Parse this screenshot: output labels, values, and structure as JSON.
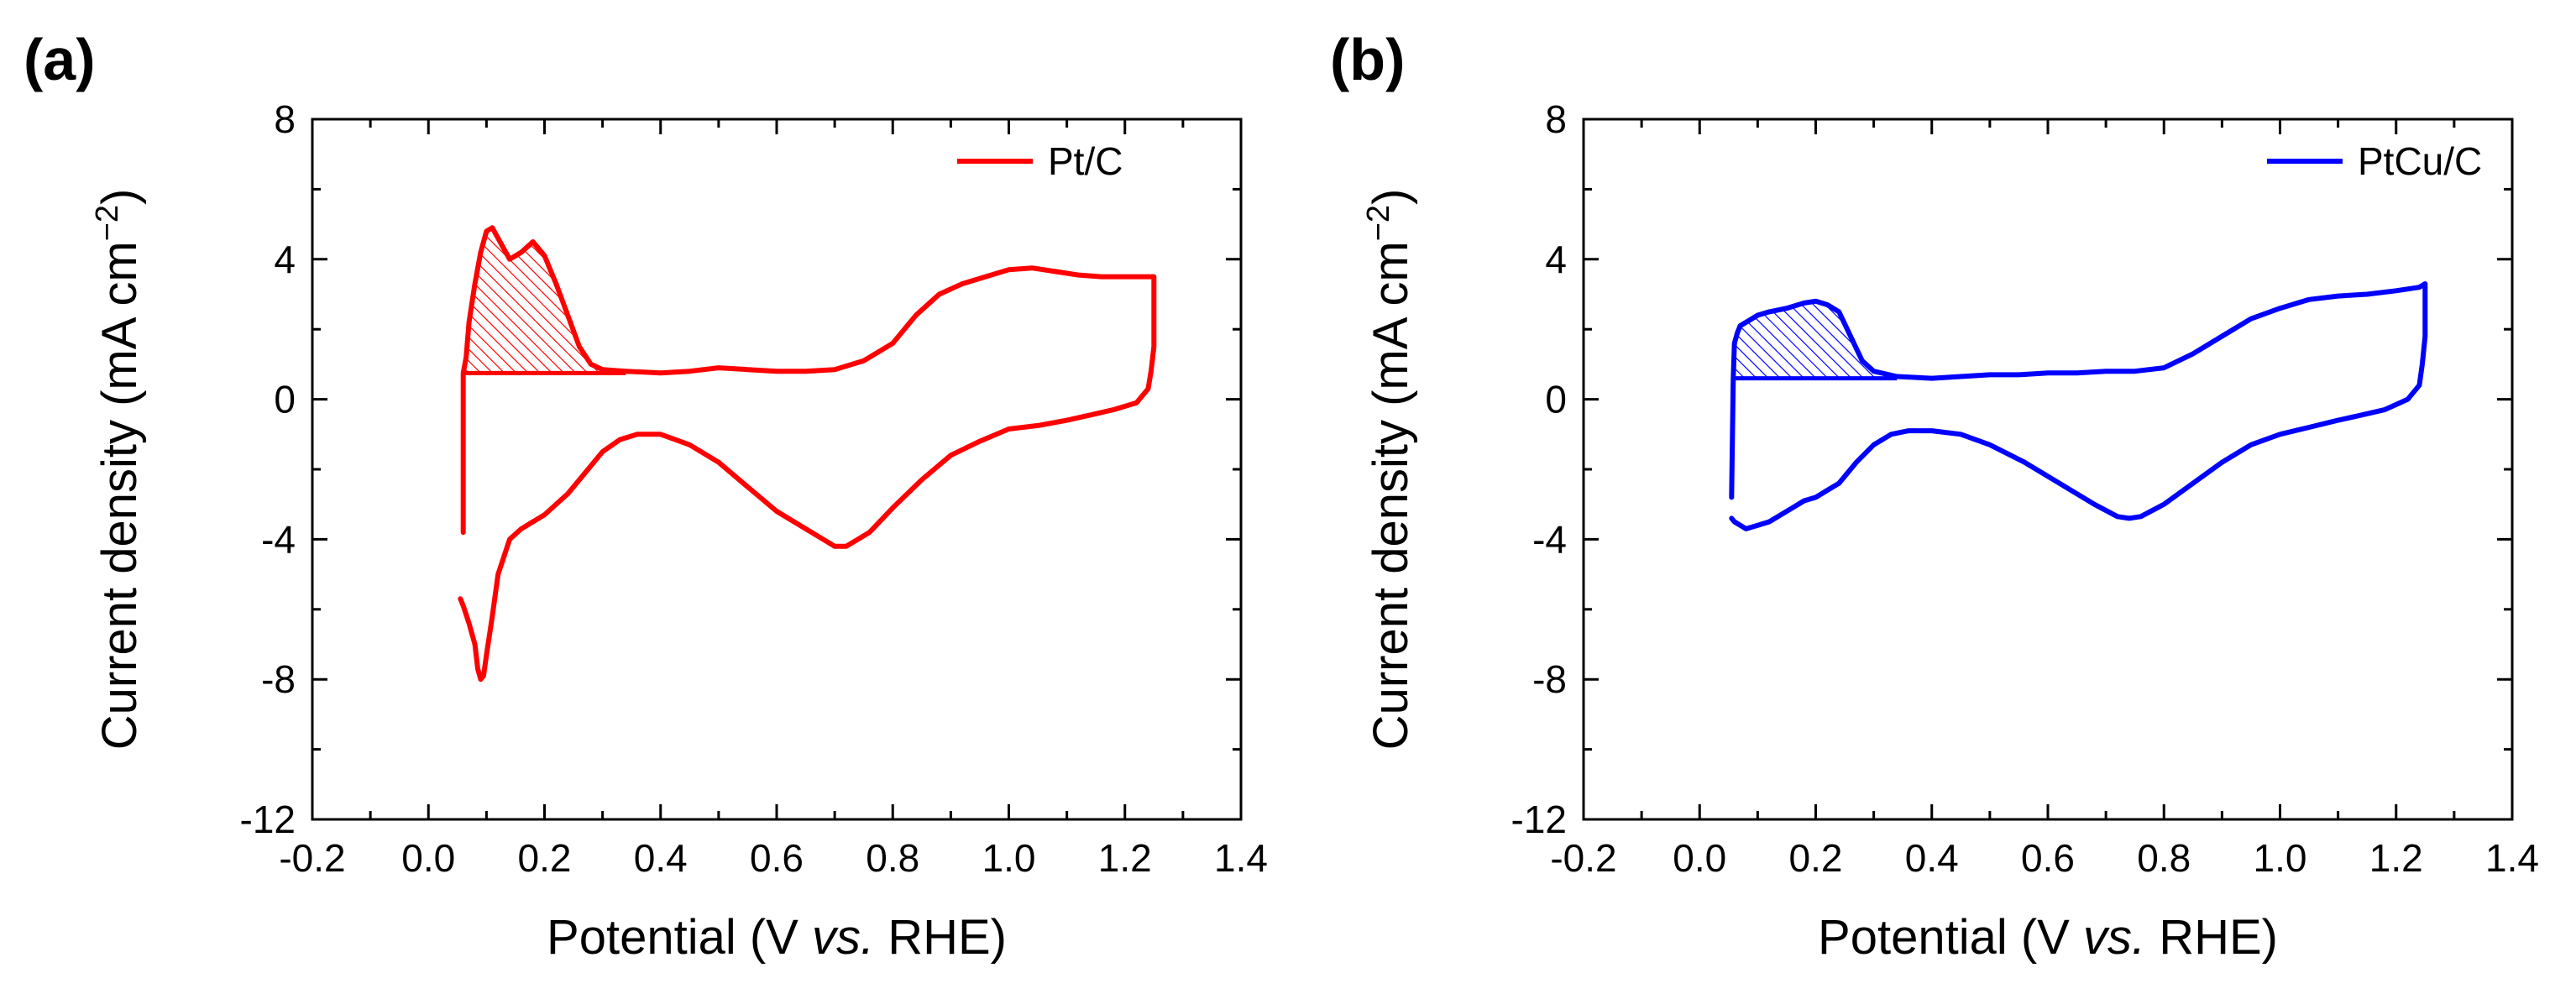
{
  "chart_data": [
    {
      "type": "line",
      "panel_label": "(a)",
      "xlabel": {
        "pre": "Potential (V ",
        "ital": "vs.",
        "post": " RHE)"
      },
      "ylabel": {
        "main": "Current density (mA cm",
        "sup": "−2",
        "close": ")"
      },
      "xlim": [
        -0.2,
        1.4
      ],
      "ylim": [
        -12,
        8
      ],
      "xticks": [
        -0.2,
        0.0,
        0.2,
        0.4,
        0.6,
        0.8,
        1.0,
        1.2,
        1.4
      ],
      "xtick_labels": [
        "-0.2",
        "0.0",
        "0.2",
        "0.4",
        "0.6",
        "0.8",
        "1.0",
        "1.2",
        "1.4"
      ],
      "yticks": [
        -12,
        -8,
        -4,
        0,
        4,
        8
      ],
      "ytick_labels": [
        "-12",
        "-8",
        "-4",
        "0",
        "4",
        "8"
      ],
      "legend_position": "top-right",
      "hatched_region": {
        "baseline": 0.75,
        "x_start": 0.06,
        "x_end": 0.34
      },
      "series": [
        {
          "name": "Pt/C",
          "color": "#ff0000",
          "x": [
            0.06,
            0.06,
            0.065,
            0.07,
            0.08,
            0.09,
            0.1,
            0.11,
            0.12,
            0.14,
            0.16,
            0.18,
            0.2,
            0.22,
            0.24,
            0.26,
            0.28,
            0.3,
            0.34,
            0.4,
            0.45,
            0.5,
            0.55,
            0.6,
            0.65,
            0.7,
            0.75,
            0.8,
            0.84,
            0.88,
            0.92,
            0.96,
            1.0,
            1.04,
            1.08,
            1.12,
            1.16,
            1.2,
            1.24,
            1.25,
            1.25,
            1.245,
            1.24,
            1.22,
            1.18,
            1.14,
            1.1,
            1.05,
            1.0,
            0.95,
            0.9,
            0.85,
            0.8,
            0.76,
            0.72,
            0.7,
            0.66,
            0.6,
            0.55,
            0.5,
            0.45,
            0.4,
            0.36,
            0.33,
            0.3,
            0.27,
            0.24,
            0.22,
            0.2,
            0.18,
            0.16,
            0.14,
            0.12,
            0.11,
            0.1,
            0.095,
            0.09,
            0.085,
            0.08,
            0.07,
            0.06,
            0.055
          ],
          "y": [
            -3.8,
            0.75,
            1.2,
            2.2,
            3.3,
            4.2,
            4.8,
            4.9,
            4.6,
            4.0,
            4.2,
            4.5,
            4.1,
            3.3,
            2.4,
            1.5,
            1.0,
            0.85,
            0.8,
            0.75,
            0.8,
            0.9,
            0.85,
            0.8,
            0.8,
            0.85,
            1.1,
            1.6,
            2.4,
            3.0,
            3.3,
            3.5,
            3.7,
            3.75,
            3.65,
            3.55,
            3.5,
            3.5,
            3.5,
            3.5,
            1.5,
            0.8,
            0.3,
            -0.1,
            -0.3,
            -0.45,
            -0.6,
            -0.75,
            -0.85,
            -1.2,
            -1.6,
            -2.3,
            -3.1,
            -3.8,
            -4.2,
            -4.2,
            -3.8,
            -3.2,
            -2.5,
            -1.8,
            -1.3,
            -1.0,
            -1.0,
            -1.15,
            -1.5,
            -2.1,
            -2.7,
            -3.0,
            -3.3,
            -3.5,
            -3.7,
            -4.0,
            -5.0,
            -6.2,
            -7.3,
            -7.9,
            -8.0,
            -7.7,
            -7.0,
            -6.4,
            -5.9,
            -5.7
          ]
        }
      ]
    },
    {
      "type": "line",
      "panel_label": "(b)",
      "xlabel": {
        "pre": "Potential (V ",
        "ital": "vs.",
        "post": " RHE)"
      },
      "ylabel": {
        "main": "Current density (mA cm",
        "sup": "−2",
        "close": ")"
      },
      "xlim": [
        -0.2,
        1.4
      ],
      "ylim": [
        -12,
        8
      ],
      "xticks": [
        -0.2,
        0.0,
        0.2,
        0.4,
        0.6,
        0.8,
        1.0,
        1.2,
        1.4
      ],
      "xtick_labels": [
        "-0.2",
        "0.0",
        "0.2",
        "0.4",
        "0.6",
        "0.8",
        "1.0",
        "1.2",
        "1.4"
      ],
      "yticks": [
        -12,
        -8,
        -4,
        0,
        4,
        8
      ],
      "ytick_labels": [
        "-12",
        "-8",
        "-4",
        "0",
        "4",
        "8"
      ],
      "legend_position": "top-right",
      "hatched_region": {
        "baseline": 0.6,
        "x_start": 0.06,
        "x_end": 0.34
      },
      "series": [
        {
          "name": "PtCu/C",
          "color": "#0000ff",
          "x": [
            0.055,
            0.058,
            0.06,
            0.065,
            0.07,
            0.08,
            0.1,
            0.12,
            0.15,
            0.18,
            0.2,
            0.22,
            0.24,
            0.26,
            0.28,
            0.3,
            0.34,
            0.4,
            0.45,
            0.5,
            0.55,
            0.6,
            0.65,
            0.7,
            0.75,
            0.8,
            0.85,
            0.9,
            0.95,
            1.0,
            1.05,
            1.1,
            1.15,
            1.2,
            1.24,
            1.25,
            1.25,
            1.245,
            1.24,
            1.22,
            1.18,
            1.14,
            1.1,
            1.05,
            1.0,
            0.95,
            0.9,
            0.85,
            0.8,
            0.76,
            0.74,
            0.72,
            0.68,
            0.62,
            0.56,
            0.5,
            0.45,
            0.4,
            0.36,
            0.33,
            0.3,
            0.27,
            0.24,
            0.22,
            0.2,
            0.18,
            0.16,
            0.14,
            0.12,
            0.1,
            0.08,
            0.06,
            0.055
          ],
          "y": [
            -2.8,
            0.6,
            1.6,
            1.9,
            2.1,
            2.2,
            2.4,
            2.5,
            2.6,
            2.75,
            2.8,
            2.7,
            2.5,
            1.8,
            1.1,
            0.8,
            0.65,
            0.6,
            0.65,
            0.7,
            0.7,
            0.75,
            0.75,
            0.8,
            0.8,
            0.9,
            1.3,
            1.8,
            2.3,
            2.6,
            2.85,
            2.95,
            3.0,
            3.1,
            3.2,
            3.3,
            1.8,
            1.0,
            0.4,
            0.0,
            -0.3,
            -0.45,
            -0.6,
            -0.8,
            -1.0,
            -1.3,
            -1.8,
            -2.4,
            -3.0,
            -3.35,
            -3.4,
            -3.35,
            -3.0,
            -2.4,
            -1.8,
            -1.3,
            -1.0,
            -0.9,
            -0.9,
            -1.0,
            -1.3,
            -1.8,
            -2.4,
            -2.6,
            -2.8,
            -2.9,
            -3.1,
            -3.3,
            -3.5,
            -3.6,
            -3.7,
            -3.5,
            -3.4
          ]
        }
      ]
    }
  ]
}
